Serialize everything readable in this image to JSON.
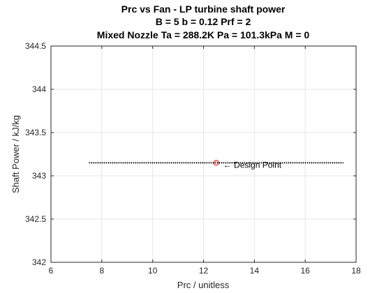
{
  "chart_data": {
    "type": "line",
    "title_lines": [
      "Prc vs Fan - LP turbine shaft power",
      "B = 5 b = 0.12 Prf = 2",
      "Mixed Nozzle Ta = 288.2K Pa = 101.3kPa M = 0"
    ],
    "xlabel": "Prc / unitless",
    "ylabel": "Shaft Power / kJ/kg",
    "xlim": [
      6,
      18
    ],
    "ylim": [
      342,
      344.5
    ],
    "xticks": [
      "6",
      "8",
      "10",
      "12",
      "14",
      "16",
      "18"
    ],
    "yticks": [
      "342",
      "342.5",
      "343",
      "343.5",
      "344",
      "344.5"
    ],
    "grid": true,
    "series": [
      {
        "x_range": [
          7.5,
          17.5
        ],
        "y": 343.15,
        "style": "dotted",
        "color": "#000000"
      }
    ],
    "design_point": {
      "x": 12.5,
      "y": 343.15,
      "color": "#e8242a"
    },
    "annotation": "← Design Point"
  }
}
